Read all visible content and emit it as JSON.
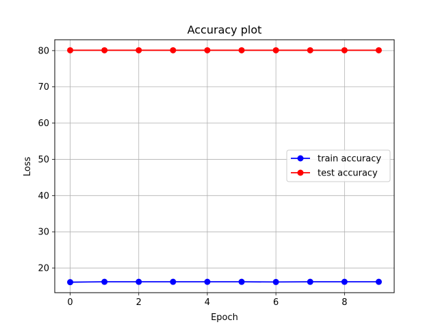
{
  "chart_data": {
    "type": "line",
    "title": "Accuracy plot",
    "xlabel": "Epoch",
    "ylabel": "Loss",
    "x": [
      0,
      1,
      2,
      3,
      4,
      5,
      6,
      7,
      8,
      9
    ],
    "xlim": [
      -0.45,
      9.45
    ],
    "ylim": [
      13.2,
      83.0
    ],
    "xticks": [
      0,
      2,
      4,
      6,
      8
    ],
    "yticks": [
      20,
      30,
      40,
      50,
      60,
      70,
      80
    ],
    "grid": true,
    "legend_position": "center-right",
    "series": [
      {
        "name": "train accuracy",
        "color": "#0000ff",
        "marker": "circle",
        "values": [
          16.1,
          16.2,
          16.2,
          16.2,
          16.2,
          16.2,
          16.15,
          16.2,
          16.2,
          16.2
        ]
      },
      {
        "name": "test accuracy",
        "color": "#ff0000",
        "marker": "circle",
        "values": [
          80.1,
          80.1,
          80.1,
          80.1,
          80.1,
          80.1,
          80.1,
          80.1,
          80.1,
          80.1
        ]
      }
    ]
  }
}
